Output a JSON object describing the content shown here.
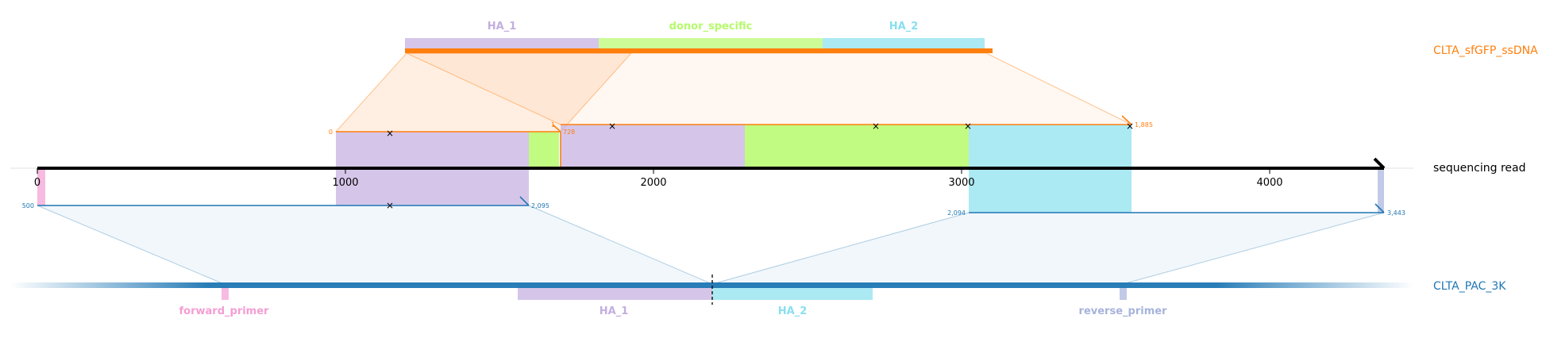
{
  "labels": {
    "donor": "CLTA_sfGFP_ssDNA",
    "read": "sequencing read",
    "genome": "CLTA_PAC_3K"
  },
  "donor_features": [
    {
      "name": "HA_1",
      "color": "#c3aee0"
    },
    {
      "name": "donor_specific",
      "color": "#b6fa6b"
    },
    {
      "name": "HA_2",
      "color": "#88dfee"
    }
  ],
  "genome_features": [
    {
      "name": "forward_primer",
      "color": "#f49dd3"
    },
    {
      "name": "HA_1",
      "color": "#c3aee0"
    },
    {
      "name": "HA_2",
      "color": "#88dfee"
    },
    {
      "name": "reverse_primer",
      "color": "#a6b3db"
    }
  ],
  "read_axis": {
    "ticks": [
      "0",
      "1000",
      "2000",
      "3000",
      "4000"
    ]
  },
  "alignment_labels": {
    "donor_start_1": "0",
    "donor_end_1": "728",
    "donor_start_2": "1",
    "donor_end_2": "1,885",
    "genome_start_1": "500",
    "genome_end_1": "2,095",
    "genome_start_2": "2,094",
    "genome_end_2": "3,443"
  },
  "colors": {
    "donor": "#ff7f0e",
    "genome": "#1f77b4",
    "read": "#000000"
  }
}
